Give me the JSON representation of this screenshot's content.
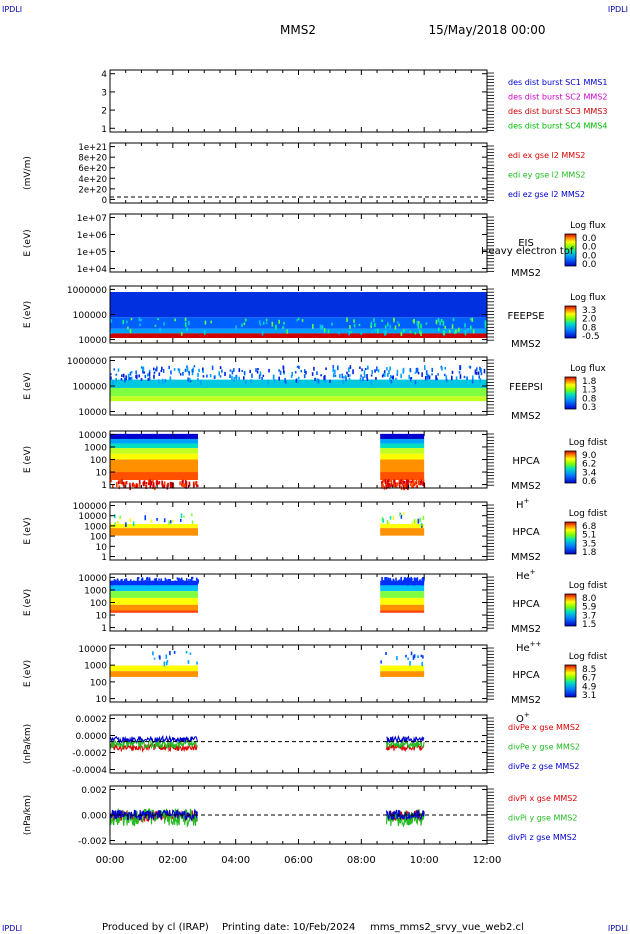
{
  "corner_labels": {
    "top_left": "IPDLI",
    "top_right": "IPDLI",
    "bottom_left": "IPDLI",
    "bottom_right": "IPDLI"
  },
  "header": {
    "spacecraft": "MMS2",
    "date": "15/May/2018 00:00"
  },
  "footer": {
    "produced_by": "Produced by cl (IRAP)",
    "printing_date": "Printing date: 10/Feb/2024",
    "file": "mms_mms2_srvy_vue_web2.cl"
  },
  "time_axis": {
    "ticks": [
      "00:00",
      "02:00",
      "04:00",
      "06:00",
      "08:00",
      "10:00",
      "12:00"
    ]
  },
  "colors": {
    "mms1": "#0000cc",
    "mms2": "#cc00cc",
    "mms3": "#cc0000",
    "mms4": "#00bb00",
    "x": "#dd0000",
    "y": "#22bb22",
    "z": "#0000cc"
  },
  "chart_data": [
    {
      "type": "line",
      "panel": "burst",
      "yticks": [
        "4",
        "3",
        "2",
        "1"
      ],
      "legend": [
        {
          "label": "des dist burst SC1 MMS1",
          "color": "#0000cc"
        },
        {
          "label": "des dist burst SC2 MMS2",
          "color": "#cc00cc"
        },
        {
          "label": "des dist burst SC3 MMS3",
          "color": "#cc0000"
        },
        {
          "label": "des dist burst SC4 MMS4",
          "color": "#00bb00"
        }
      ]
    },
    {
      "type": "line",
      "panel": "edi",
      "ylabel": "(mV/m)",
      "yticks": [
        "1e+21",
        "8e+20",
        "6e+20",
        "4e+20",
        "2e+20",
        "0"
      ],
      "legend": [
        {
          "label": "edi ex gse l2 MMS2",
          "color": "#dd0000"
        },
        {
          "label": "edi ey gse l2 MMS2",
          "color": "#22bb22"
        },
        {
          "label": "edi ez gse l2 MMS2",
          "color": "#0000cc"
        }
      ]
    },
    {
      "type": "heatmap",
      "panel": "eis",
      "ylabel": "E (eV)",
      "yticks": [
        "1e+07",
        "1e+06",
        "1e+05",
        "1e+04"
      ],
      "instrument": "EIS",
      "overlay": "Heavy electron tof",
      "spacecraft": "MMS2",
      "colorbar": {
        "title": "Log flux",
        "ticks": [
          "0.0",
          "0.0",
          "0.0",
          "0.0"
        ]
      }
    },
    {
      "type": "heatmap",
      "panel": "feepse",
      "ylabel": "E (eV)",
      "yticks": [
        "1000000",
        "100000",
        "10000"
      ],
      "instrument": "FEEPSE",
      "spacecraft": "MMS2",
      "colorbar": {
        "title": "Log flux",
        "ticks": [
          "3.3",
          "2.0",
          "0.8",
          "-0.5"
        ]
      }
    },
    {
      "type": "heatmap",
      "panel": "feepsi",
      "ylabel": "E (eV)",
      "yticks": [
        "1000000",
        "100000",
        "10000"
      ],
      "instrument": "FEEPSI",
      "spacecraft": "MMS2",
      "colorbar": {
        "title": "Log flux",
        "ticks": [
          "1.8",
          "1.3",
          "0.8",
          "0.3"
        ]
      }
    },
    {
      "type": "heatmap",
      "panel": "hpca_h",
      "ylabel": "E (eV)",
      "yticks": [
        "10000",
        "1000",
        "100",
        "10",
        "1"
      ],
      "instrument": "HPCA",
      "spacecraft": "MMS2",
      "species": "H",
      "charge": "+",
      "colorbar": {
        "title": "Log fdist",
        "ticks": [
          "9.0",
          "6.2",
          "3.4",
          "0.6"
        ]
      }
    },
    {
      "type": "heatmap",
      "panel": "hpca_he",
      "ylabel": "E (eV)",
      "yticks": [
        "100000",
        "10000",
        "1000",
        "100",
        "10",
        "1"
      ],
      "instrument": "HPCA",
      "spacecraft": "MMS2",
      "species": "He",
      "charge": "+",
      "colorbar": {
        "title": "Log fdist",
        "ticks": [
          "6.8",
          "5.1",
          "3.5",
          "1.8"
        ]
      }
    },
    {
      "type": "heatmap",
      "panel": "hpca_he2",
      "ylabel": "E (eV)",
      "yticks": [
        "10000",
        "1000",
        "100",
        "10",
        "1"
      ],
      "instrument": "HPCA",
      "spacecraft": "MMS2",
      "species": "He",
      "charge": "++",
      "colorbar": {
        "title": "Log fdist",
        "ticks": [
          "8.0",
          "5.9",
          "3.7",
          "1.5"
        ]
      }
    },
    {
      "type": "heatmap",
      "panel": "hpca_o",
      "ylabel": "E (eV)",
      "yticks": [
        "10000",
        "1000",
        "100",
        "10"
      ],
      "instrument": "HPCA",
      "spacecraft": "MMS2",
      "species": "O",
      "charge": "+",
      "colorbar": {
        "title": "Log fdist",
        "ticks": [
          "8.5",
          "6.7",
          "4.9",
          "3.1"
        ]
      }
    },
    {
      "type": "line",
      "panel": "divpe",
      "ylabel": "(nPa/km)",
      "yticks": [
        "0.0002",
        "0.0000",
        "-0.0002",
        "-0.0004"
      ],
      "legend": [
        {
          "label": "divPe x gse MMS2",
          "color": "#dd0000"
        },
        {
          "label": "divPe y gse MMS2",
          "color": "#22bb22"
        },
        {
          "label": "divPe z gse MMS2",
          "color": "#0000cc"
        }
      ]
    },
    {
      "type": "line",
      "panel": "divpi",
      "ylabel": "(nPa/km)",
      "yticks": [
        "0.002",
        "0.000",
        "-0.002"
      ],
      "legend": [
        {
          "label": "divPi x gse MMS2",
          "color": "#dd0000"
        },
        {
          "label": "divPi y gse MMS2",
          "color": "#22bb22"
        },
        {
          "label": "divPi z gse MMS2",
          "color": "#0000cc"
        }
      ]
    }
  ]
}
